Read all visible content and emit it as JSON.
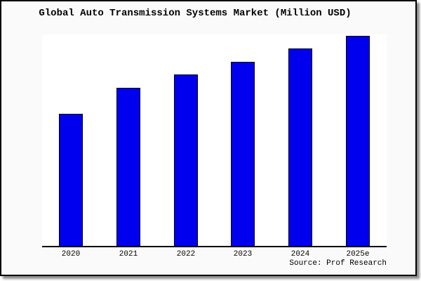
{
  "chart_data": {
    "type": "bar",
    "title": "Global Auto Transmission Systems Market (Million USD)",
    "categories": [
      "2020",
      "2021",
      "2022",
      "2023",
      "2024",
      "2025e"
    ],
    "values": [
      62.9,
      75.3,
      81.6,
      87.6,
      94.0,
      100.0
    ],
    "value_axis": "unlabeled (no y-axis ticks); values are bar heights relative to 2025e = 100",
    "xlabel": "",
    "ylabel": "",
    "legend": "none",
    "grid": false,
    "source_note": "Source: Prof Research",
    "colors": {
      "bar_fill": "#0000ee",
      "bar_border": "#000000",
      "plot_bg": "#ffffff",
      "canvas_bg": "#fafafa",
      "frame_border": "#000000",
      "text": "#000000"
    }
  }
}
